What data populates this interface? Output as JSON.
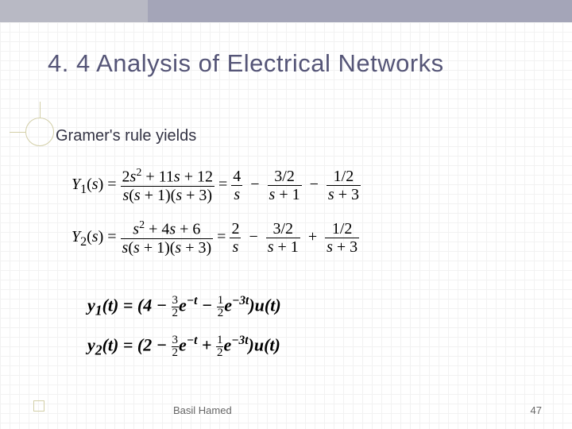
{
  "slide": {
    "title": "4. 4 Analysis of Electrical Networks",
    "body": "Gramer's rule yields",
    "title_color": "#555577",
    "body_color": "#333344",
    "title_fontsize": 31,
    "body_fontsize": 20,
    "background_color": "#ffffff",
    "top_bar_color": "#b8b9c4",
    "top_bar_accent_color": "#a4a5b8",
    "grid_minor_color": "#f2f2f2",
    "grid_major_color": "#e8e8e8",
    "decoration_color": "#d3cfa8"
  },
  "equations": {
    "y1_s": {
      "lhs": "Y_1(s)",
      "rational_numerator": "2s^2 + 11s + 12",
      "rational_denominator": "s(s + 1)(s + 3)",
      "partial_fractions": [
        {
          "num": "4",
          "den": "s"
        },
        {
          "sign": "-",
          "num": "3/2",
          "den": "s + 1"
        },
        {
          "sign": "-",
          "num": "1/2",
          "den": "s + 3"
        }
      ]
    },
    "y2_s": {
      "lhs": "Y_2(s)",
      "rational_numerator": "s^2 + 4s + 6",
      "rational_denominator": "s(s + 1)(s + 3)",
      "partial_fractions": [
        {
          "num": "2",
          "den": "s"
        },
        {
          "sign": "-",
          "num": "3/2",
          "den": "s + 1"
        },
        {
          "sign": "+",
          "num": "1/2",
          "den": "s + 3"
        }
      ]
    },
    "y1_t": "y_1(t) = (4 - (3/2) e^{-t} - (1/2) e^{-3t}) u(t)",
    "y2_t": "y_2(t) = (2 - (3/2) e^{-t} + (1/2) e^{-3t}) u(t)"
  },
  "footer": {
    "author": "Basil Hamed",
    "page": "47",
    "color": "#666666",
    "fontsize": 13
  }
}
